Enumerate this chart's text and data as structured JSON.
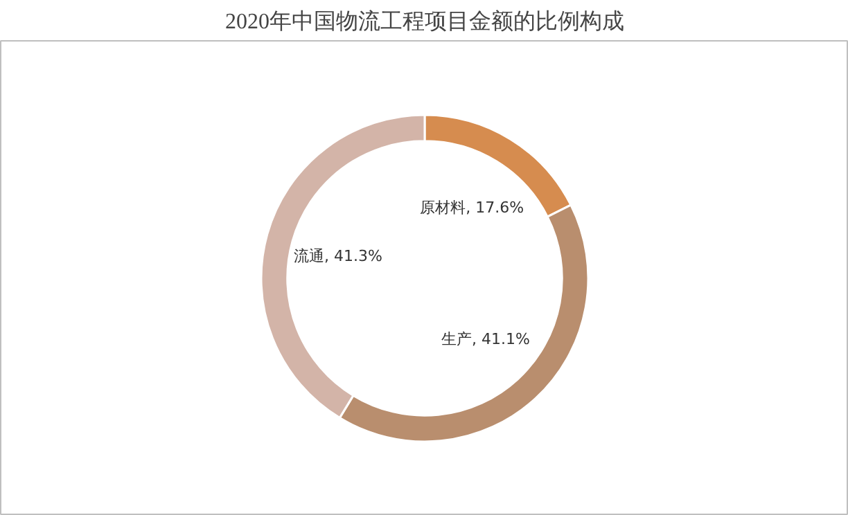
{
  "chart_data": {
    "type": "donut",
    "title": "2020年中国物流工程项目金额的比例构成",
    "categories": [
      "原材料",
      "生产",
      "流通"
    ],
    "values": [
      17.6,
      41.1,
      41.3
    ],
    "colors": [
      "#d68c4f",
      "#b98e6e",
      "#d3b4a8"
    ],
    "value_labels": [
      "17.6%",
      "41.1%",
      "41.3%"
    ],
    "legend": false
  }
}
